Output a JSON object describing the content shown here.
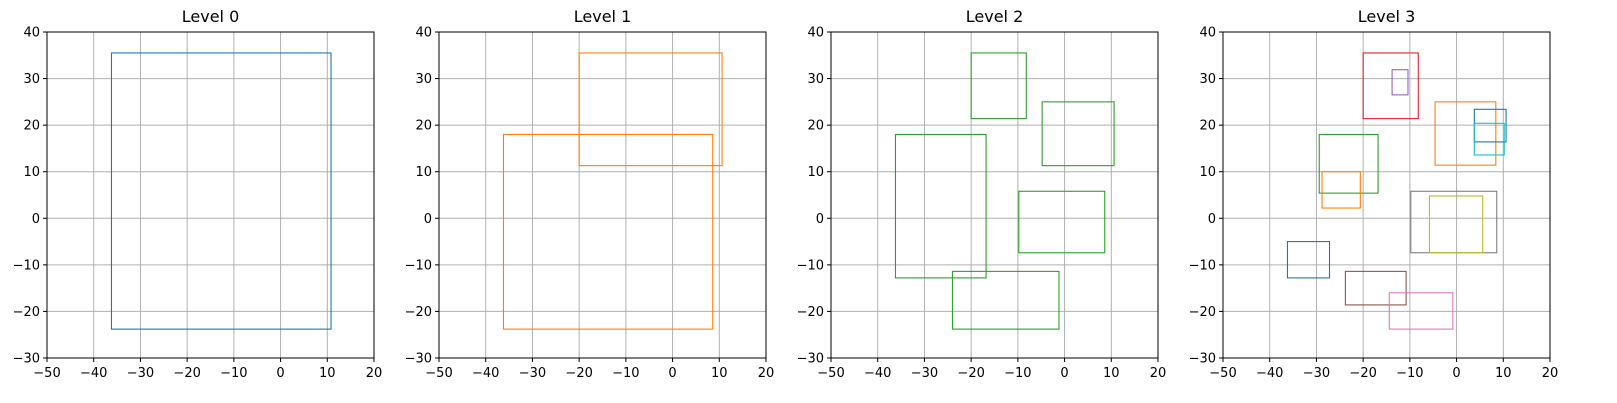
{
  "chart_data": [
    {
      "type": "rectangles",
      "title": "Level 0",
      "xlim": [
        -50,
        20
      ],
      "ylim": [
        -30,
        40
      ],
      "xticks": [
        -50,
        -40,
        -30,
        -20,
        -10,
        0,
        10,
        20
      ],
      "yticks": [
        -30,
        -20,
        -10,
        0,
        10,
        20,
        30,
        40
      ],
      "grid": true,
      "rectangles": [
        {
          "x0": -36.2,
          "x1": 10.8,
          "y0": -23.8,
          "y1": 35.5,
          "color": "#1f77b4"
        }
      ]
    },
    {
      "type": "rectangles",
      "title": "Level 1",
      "xlim": [
        -50,
        20
      ],
      "ylim": [
        -30,
        40
      ],
      "xticks": [
        -50,
        -40,
        -30,
        -20,
        -10,
        0,
        10,
        20
      ],
      "yticks": [
        -30,
        -20,
        -10,
        0,
        10,
        20,
        30,
        40
      ],
      "grid": true,
      "rectangles": [
        {
          "x0": -20.0,
          "x1": 10.6,
          "y0": 11.3,
          "y1": 35.5,
          "color": "#ff7f0e"
        },
        {
          "x0": -36.2,
          "x1": 8.6,
          "y0": -23.8,
          "y1": 18.0,
          "color": "#ff7f0e"
        }
      ]
    },
    {
      "type": "rectangles",
      "title": "Level 2",
      "xlim": [
        -50,
        20
      ],
      "ylim": [
        -30,
        40
      ],
      "xticks": [
        -50,
        -40,
        -30,
        -20,
        -10,
        0,
        10,
        20
      ],
      "yticks": [
        -30,
        -20,
        -10,
        0,
        10,
        20,
        30,
        40
      ],
      "grid": true,
      "rectangles": [
        {
          "x0": -20.0,
          "x1": -8.2,
          "y0": 21.4,
          "y1": 35.5,
          "color": "#2ca02c"
        },
        {
          "x0": -4.8,
          "x1": 10.6,
          "y0": 11.3,
          "y1": 25.0,
          "color": "#2ca02c"
        },
        {
          "x0": -36.2,
          "x1": -16.8,
          "y0": -12.8,
          "y1": 18.0,
          "color": "#2ca02c"
        },
        {
          "x0": -9.8,
          "x1": 8.6,
          "y0": -7.4,
          "y1": 5.8,
          "color": "#2ca02c"
        },
        {
          "x0": -24.0,
          "x1": -1.2,
          "y0": -23.8,
          "y1": -11.4,
          "color": "#2ca02c"
        }
      ]
    },
    {
      "type": "rectangles",
      "title": "Level 3",
      "xlim": [
        -50,
        20
      ],
      "ylim": [
        -30,
        40
      ],
      "xticks": [
        -50,
        -40,
        -30,
        -20,
        -10,
        0,
        10,
        20
      ],
      "yticks": [
        -30,
        -20,
        -10,
        0,
        10,
        20,
        30,
        40
      ],
      "grid": true,
      "rectangles": [
        {
          "x0": -20.0,
          "x1": -8.2,
          "y0": 21.4,
          "y1": 35.5,
          "color": "#d62728"
        },
        {
          "x0": -13.8,
          "x1": -10.4,
          "y0": 26.5,
          "y1": 31.9,
          "color": "#9467bd"
        },
        {
          "x0": -4.6,
          "x1": 8.4,
          "y0": 11.4,
          "y1": 25.0,
          "color": "#ff7f0e"
        },
        {
          "x0": 3.8,
          "x1": 10.6,
          "y0": 16.4,
          "y1": 23.4,
          "color": "#1f77b4"
        },
        {
          "x0": 3.8,
          "x1": 10.2,
          "y0": 13.6,
          "y1": 20.4,
          "color": "#17becf"
        },
        {
          "x0": -29.4,
          "x1": -16.8,
          "y0": 5.4,
          "y1": 18.0,
          "color": "#2ca02c"
        },
        {
          "x0": -28.8,
          "x1": -20.6,
          "y0": 2.2,
          "y1": 10.0,
          "color": "#ff7f0e"
        },
        {
          "x0": -9.8,
          "x1": 8.6,
          "y0": -7.4,
          "y1": 5.8,
          "color": "#7f7f7f"
        },
        {
          "x0": -5.8,
          "x1": 5.6,
          "y0": -7.4,
          "y1": 4.8,
          "color": "#bcbd22"
        },
        {
          "x0": -36.2,
          "x1": -27.2,
          "y0": -12.8,
          "y1": -5.0,
          "color": "#1f77b4"
        },
        {
          "x0": -23.8,
          "x1": -10.8,
          "y0": -18.6,
          "y1": -11.4,
          "color": "#8c564b"
        },
        {
          "x0": -14.4,
          "x1": -0.8,
          "y0": -23.8,
          "y1": -16.0,
          "color": "#e377c2"
        }
      ]
    }
  ]
}
